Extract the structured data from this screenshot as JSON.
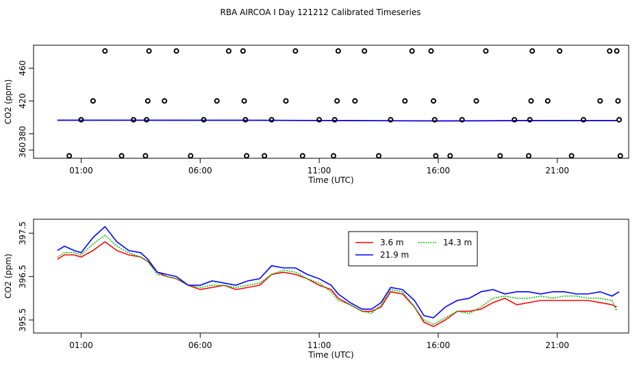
{
  "chart_data": {
    "title": "RBA AIRCOA I  Day 121212  Calibrated Timeseries",
    "x_range_hours": [
      -1.0,
      24.0
    ],
    "x_ticks": [
      {
        "h": 1,
        "label": "01:00"
      },
      {
        "h": 6,
        "label": "06:00"
      },
      {
        "h": 11,
        "label": "11:00"
      },
      {
        "h": 16,
        "label": "16:00"
      },
      {
        "h": 21,
        "label": "21:00"
      }
    ],
    "panels": [
      {
        "type": "scatter+line",
        "xlabel": "Time (UTC)",
        "ylabel": "CO2 (ppm)",
        "ylim": [
          350,
          488
        ],
        "y_ticks": [
          360,
          380,
          420,
          460
        ],
        "points": [
          [
            0.5,
            353
          ],
          [
            1.0,
            397
          ],
          [
            1.5,
            420
          ],
          [
            2.0,
            481
          ],
          [
            2.7,
            353
          ],
          [
            3.2,
            397
          ],
          [
            3.7,
            353
          ],
          [
            3.75,
            397
          ],
          [
            3.8,
            420
          ],
          [
            3.85,
            481
          ],
          [
            4.5,
            420
          ],
          [
            5.0,
            481
          ],
          [
            5.6,
            353
          ],
          [
            6.15,
            397
          ],
          [
            6.7,
            420
          ],
          [
            7.2,
            481
          ],
          [
            7.8,
            481
          ],
          [
            7.85,
            420
          ],
          [
            7.9,
            397
          ],
          [
            7.95,
            353
          ],
          [
            8.7,
            353
          ],
          [
            9.0,
            397
          ],
          [
            9.6,
            420
          ],
          [
            10.0,
            481
          ],
          [
            10.3,
            353
          ],
          [
            11.0,
            397
          ],
          [
            11.6,
            353
          ],
          [
            11.65,
            397
          ],
          [
            11.75,
            420
          ],
          [
            11.8,
            481
          ],
          [
            12.5,
            420
          ],
          [
            12.9,
            481
          ],
          [
            13.5,
            353
          ],
          [
            14.0,
            397
          ],
          [
            14.6,
            420
          ],
          [
            14.9,
            481
          ],
          [
            15.7,
            481
          ],
          [
            15.8,
            420
          ],
          [
            15.85,
            397
          ],
          [
            15.9,
            353
          ],
          [
            16.5,
            353
          ],
          [
            17.0,
            397
          ],
          [
            17.6,
            420
          ],
          [
            18.0,
            481
          ],
          [
            18.6,
            353
          ],
          [
            19.2,
            397
          ],
          [
            19.8,
            353
          ],
          [
            19.85,
            397
          ],
          [
            19.9,
            420
          ],
          [
            19.95,
            481
          ],
          [
            20.6,
            420
          ],
          [
            21.1,
            481
          ],
          [
            21.6,
            353
          ],
          [
            22.1,
            397
          ],
          [
            22.8,
            420
          ],
          [
            23.2,
            481
          ],
          [
            23.5,
            481
          ],
          [
            23.55,
            420
          ],
          [
            23.6,
            397
          ],
          [
            23.65,
            353
          ]
        ],
        "series": [
          {
            "name": "3.6 m",
            "color": "#ff0000",
            "values": [
              [
                0,
                396.5
              ],
              [
                4,
                396.4
              ],
              [
                8,
                396.3
              ],
              [
                12,
                396.0
              ],
              [
                16,
                395.5
              ],
              [
                20,
                395.9
              ],
              [
                23.5,
                395.8
              ]
            ]
          },
          {
            "name": "14.3 m",
            "color": "#00c000",
            "values": [
              [
                0,
                396.5
              ],
              [
                4,
                396.4
              ],
              [
                8,
                396.3
              ],
              [
                12,
                396.0
              ],
              [
                16,
                395.6
              ],
              [
                20,
                396.0
              ],
              [
                23.5,
                395.9
              ]
            ]
          },
          {
            "name": "21.9 m",
            "color": "#0000ff",
            "values": [
              [
                0,
                396.5
              ],
              [
                4,
                396.5
              ],
              [
                8,
                396.4
              ],
              [
                12,
                396.1
              ],
              [
                16,
                395.7
              ],
              [
                20,
                396.1
              ],
              [
                23.5,
                396.1
              ]
            ]
          }
        ]
      },
      {
        "type": "line",
        "xlabel": "Time (UTC)",
        "ylabel": "CO2 (ppm)",
        "ylim": [
          395.2,
          397.82
        ],
        "y_ticks": [
          395.5,
          396.5,
          397.5
        ],
        "legend_position": "top-center",
        "series": [
          {
            "name": "3.6 m",
            "color": "#ff0000",
            "values": [
              [
                0,
                396.9
              ],
              [
                0.3,
                397.0
              ],
              [
                0.7,
                397.0
              ],
              [
                1.0,
                396.95
              ],
              [
                1.5,
                397.1
              ],
              [
                2.0,
                397.3
              ],
              [
                2.5,
                397.1
              ],
              [
                3.0,
                397.0
              ],
              [
                3.5,
                396.95
              ],
              [
                3.8,
                396.85
              ],
              [
                4.2,
                396.6
              ],
              [
                4.6,
                396.5
              ],
              [
                5.0,
                396.45
              ],
              [
                5.5,
                396.3
              ],
              [
                6.0,
                396.2
              ],
              [
                6.5,
                396.25
              ],
              [
                7.0,
                396.3
              ],
              [
                7.5,
                396.2
              ],
              [
                8.0,
                396.25
              ],
              [
                8.5,
                396.3
              ],
              [
                9.0,
                396.55
              ],
              [
                9.5,
                396.6
              ],
              [
                10.0,
                396.55
              ],
              [
                10.5,
                396.45
              ],
              [
                11.0,
                396.3
              ],
              [
                11.5,
                396.2
              ],
              [
                11.8,
                396.0
              ],
              [
                12.3,
                395.85
              ],
              [
                12.8,
                395.7
              ],
              [
                13.2,
                395.7
              ],
              [
                13.6,
                395.8
              ],
              [
                14.0,
                396.15
              ],
              [
                14.5,
                396.1
              ],
              [
                15.0,
                395.8
              ],
              [
                15.4,
                395.45
              ],
              [
                15.8,
                395.35
              ],
              [
                16.3,
                395.5
              ],
              [
                16.8,
                395.7
              ],
              [
                17.3,
                395.7
              ],
              [
                17.8,
                395.75
              ],
              [
                18.3,
                395.9
              ],
              [
                18.8,
                396.0
              ],
              [
                19.3,
                395.85
              ],
              [
                19.8,
                395.9
              ],
              [
                20.3,
                395.95
              ],
              [
                20.8,
                395.95
              ],
              [
                21.3,
                395.95
              ],
              [
                21.8,
                395.95
              ],
              [
                22.3,
                395.95
              ],
              [
                22.8,
                395.9
              ],
              [
                23.3,
                395.85
              ],
              [
                23.5,
                395.8
              ]
            ]
          },
          {
            "name": "14.3 m",
            "color": "#00c000",
            "values": [
              [
                0,
                396.95
              ],
              [
                0.3,
                397.05
              ],
              [
                0.7,
                397.05
              ],
              [
                1.0,
                397.0
              ],
              [
                1.5,
                397.25
              ],
              [
                2.0,
                397.45
              ],
              [
                2.5,
                397.2
              ],
              [
                3.0,
                397.05
              ],
              [
                3.5,
                396.95
              ],
              [
                3.8,
                396.85
              ],
              [
                4.2,
                396.55
              ],
              [
                4.6,
                396.5
              ],
              [
                5.0,
                396.45
              ],
              [
                5.5,
                396.3
              ],
              [
                6.0,
                396.25
              ],
              [
                6.5,
                396.3
              ],
              [
                7.0,
                396.3
              ],
              [
                7.5,
                396.25
              ],
              [
                8.0,
                396.3
              ],
              [
                8.5,
                396.35
              ],
              [
                9.0,
                396.55
              ],
              [
                9.5,
                396.65
              ],
              [
                10.0,
                396.6
              ],
              [
                10.5,
                396.45
              ],
              [
                11.0,
                396.35
              ],
              [
                11.5,
                396.15
              ],
              [
                11.8,
                395.95
              ],
              [
                12.3,
                395.85
              ],
              [
                12.8,
                395.7
              ],
              [
                13.2,
                395.65
              ],
              [
                13.6,
                395.85
              ],
              [
                14.0,
                396.2
              ],
              [
                14.5,
                396.15
              ],
              [
                15.0,
                395.8
              ],
              [
                15.4,
                395.5
              ],
              [
                15.8,
                395.4
              ],
              [
                16.3,
                395.55
              ],
              [
                16.8,
                395.7
              ],
              [
                17.3,
                395.65
              ],
              [
                17.8,
                395.8
              ],
              [
                18.3,
                396.0
              ],
              [
                18.8,
                396.05
              ],
              [
                19.3,
                396.0
              ],
              [
                19.8,
                396.0
              ],
              [
                20.3,
                396.05
              ],
              [
                20.8,
                396.0
              ],
              [
                21.3,
                396.05
              ],
              [
                21.8,
                396.05
              ],
              [
                22.3,
                396.0
              ],
              [
                22.8,
                396.0
              ],
              [
                23.3,
                395.95
              ],
              [
                23.5,
                395.7
              ]
            ]
          },
          {
            "name": "21.9 m",
            "color": "#0000ff",
            "values": [
              [
                0,
                397.1
              ],
              [
                0.3,
                397.2
              ],
              [
                0.7,
                397.1
              ],
              [
                1.0,
                397.05
              ],
              [
                1.5,
                397.4
              ],
              [
                2.0,
                397.65
              ],
              [
                2.5,
                397.3
              ],
              [
                3.0,
                397.1
              ],
              [
                3.5,
                397.05
              ],
              [
                3.8,
                396.9
              ],
              [
                4.2,
                396.6
              ],
              [
                4.6,
                396.55
              ],
              [
                5.0,
                396.5
              ],
              [
                5.5,
                396.3
              ],
              [
                6.0,
                396.3
              ],
              [
                6.5,
                396.4
              ],
              [
                7.0,
                396.35
              ],
              [
                7.5,
                396.3
              ],
              [
                8.0,
                396.4
              ],
              [
                8.5,
                396.45
              ],
              [
                9.0,
                396.75
              ],
              [
                9.5,
                396.7
              ],
              [
                10.0,
                396.7
              ],
              [
                10.5,
                396.55
              ],
              [
                11.0,
                396.45
              ],
              [
                11.5,
                396.3
              ],
              [
                11.8,
                396.1
              ],
              [
                12.3,
                395.9
              ],
              [
                12.8,
                395.75
              ],
              [
                13.2,
                395.75
              ],
              [
                13.6,
                395.9
              ],
              [
                14.0,
                396.25
              ],
              [
                14.5,
                396.2
              ],
              [
                15.0,
                395.95
              ],
              [
                15.4,
                395.6
              ],
              [
                15.8,
                395.55
              ],
              [
                16.3,
                395.8
              ],
              [
                16.8,
                395.95
              ],
              [
                17.3,
                396.0
              ],
              [
                17.8,
                396.15
              ],
              [
                18.3,
                396.2
              ],
              [
                18.8,
                396.1
              ],
              [
                19.3,
                396.15
              ],
              [
                19.8,
                396.15
              ],
              [
                20.3,
                396.1
              ],
              [
                20.8,
                396.15
              ],
              [
                21.3,
                396.15
              ],
              [
                21.8,
                396.1
              ],
              [
                22.3,
                396.1
              ],
              [
                22.8,
                396.15
              ],
              [
                23.3,
                396.05
              ],
              [
                23.6,
                396.15
              ]
            ]
          }
        ]
      }
    ]
  }
}
